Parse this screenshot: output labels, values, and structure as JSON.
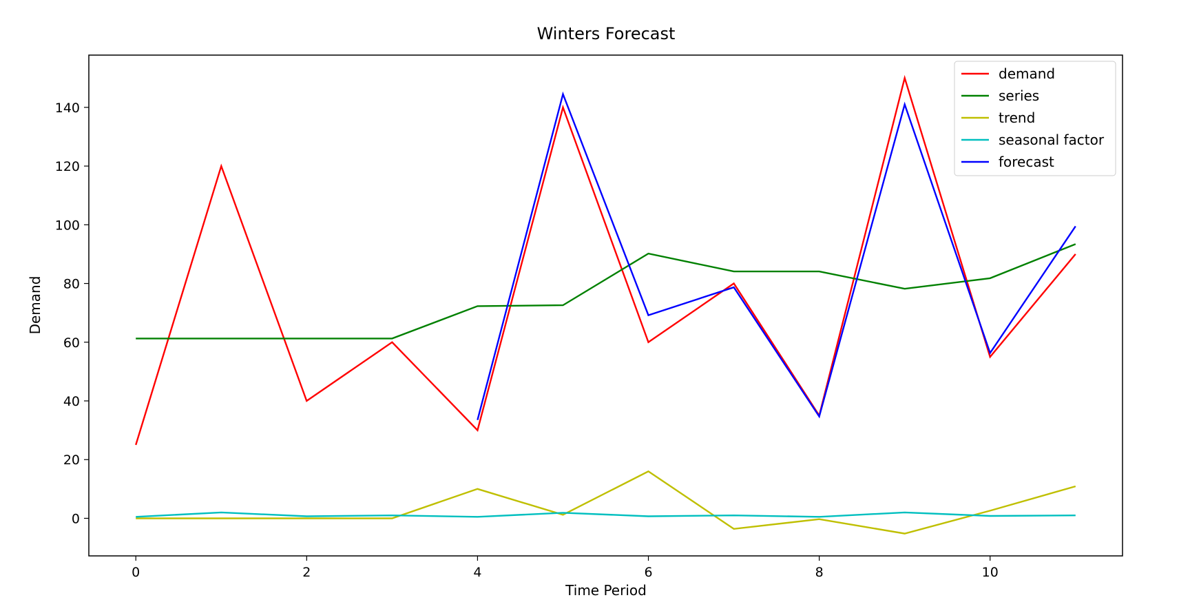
{
  "chart_data": {
    "type": "line",
    "title": "Winters Forecast",
    "xlabel": "Time Period",
    "ylabel": "Demand",
    "xlim": [
      -0.55,
      11.55
    ],
    "ylim": [
      -12.8,
      157.8
    ],
    "xticks": [
      0,
      2,
      4,
      6,
      8,
      10
    ],
    "yticks": [
      0,
      20,
      40,
      60,
      80,
      100,
      120,
      140
    ],
    "grid": false,
    "legend_position": "top-right",
    "series": [
      {
        "name": "demand",
        "color": "#ff0000",
        "x": [
          0,
          1,
          2,
          3,
          4,
          5,
          6,
          7,
          8,
          9,
          10,
          11
        ],
        "y": [
          25,
          120,
          40,
          60,
          30,
          140,
          60,
          80,
          35,
          150,
          55,
          90
        ]
      },
      {
        "name": "series",
        "color": "#008000",
        "x": [
          0,
          1,
          2,
          3,
          4,
          5,
          6,
          7,
          8,
          9,
          10,
          11
        ],
        "y": [
          61.25,
          61.25,
          61.25,
          61.25,
          72.3,
          72.6,
          90.2,
          84.1,
          84.1,
          78.2,
          81.8,
          93.4
        ]
      },
      {
        "name": "trend",
        "color": "#bfbf00",
        "x": [
          0,
          1,
          2,
          3,
          4,
          5,
          6,
          7,
          8,
          9,
          10,
          11
        ],
        "y": [
          0,
          0,
          0,
          0,
          10.0,
          1.2,
          16.0,
          -3.6,
          -0.3,
          -5.2,
          2.6,
          10.9
        ]
      },
      {
        "name": "seasonal factor",
        "color": "#00bfbf",
        "x": [
          0,
          1,
          2,
          3,
          4,
          5,
          6,
          7,
          8,
          9,
          10,
          11
        ],
        "y": [
          0.5,
          2.0,
          0.7,
          1.0,
          0.5,
          1.9,
          0.7,
          1.0,
          0.5,
          2.0,
          0.8,
          1.0
        ]
      },
      {
        "name": "forecast",
        "color": "#0000ff",
        "x": [
          4,
          5,
          6,
          7,
          8,
          9,
          10,
          11
        ],
        "y": [
          33.5,
          144.5,
          69.2,
          78.7,
          34.7,
          141.0,
          56.3,
          99.5
        ]
      }
    ]
  }
}
